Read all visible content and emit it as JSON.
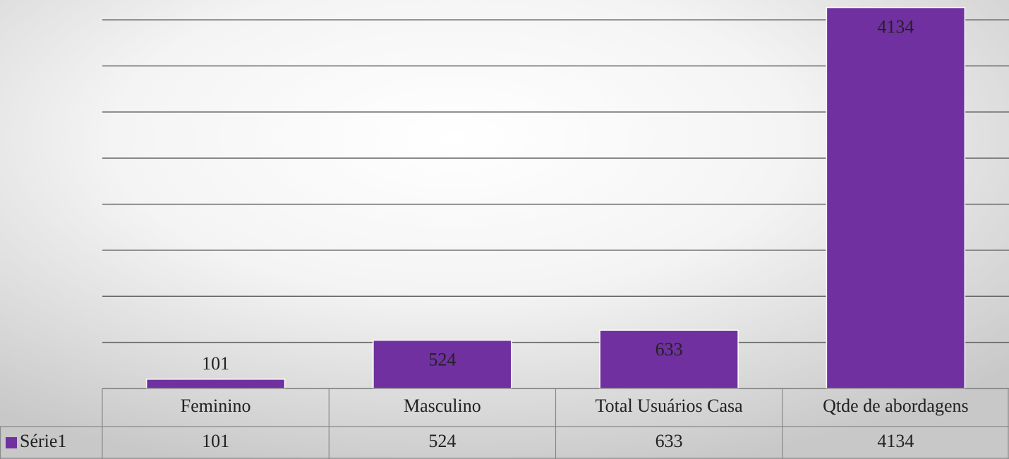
{
  "chart_data": {
    "type": "bar",
    "categories": [
      "Feminino",
      "Masculino",
      "Total Usuários Casa",
      "Qtde de abordagens"
    ],
    "series": [
      {
        "name": "Série1",
        "color": "#7030a0",
        "values": [
          101,
          524,
          633,
          4134
        ]
      }
    ],
    "ylim": [
      0,
      4200
    ],
    "yticks": [
      0,
      500,
      1000,
      1500,
      2000,
      2500,
      3000,
      3500,
      4000
    ],
    "grid": true,
    "data_table": true
  }
}
